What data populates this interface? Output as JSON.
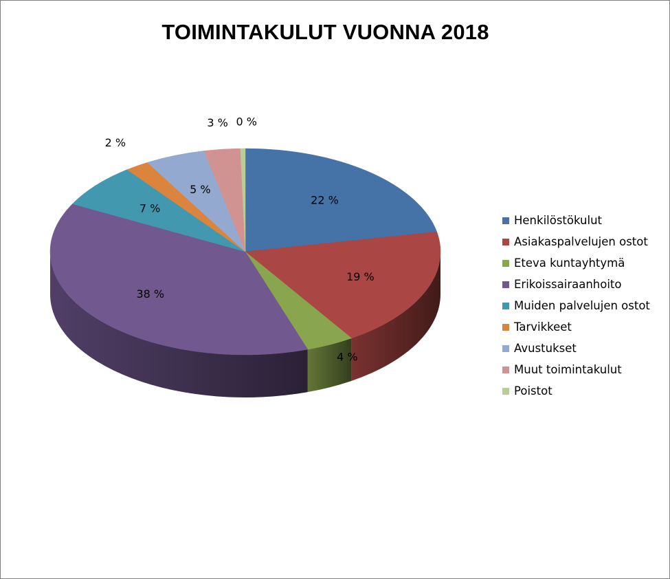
{
  "chart_data": {
    "type": "pie",
    "title": "TOIMINTAKULUT VUONNA 2018",
    "legend_position": "right",
    "style": "3d",
    "slices": [
      {
        "name": "Henkilöstökulut",
        "value": 22,
        "label": "22 %",
        "color": "#4572a7"
      },
      {
        "name": "Asiakaspalvelujen ostot",
        "value": 19,
        "label": "19 %",
        "color": "#aa4643"
      },
      {
        "name": "Eteva kuntayhtymä",
        "value": 4,
        "label": "4 %",
        "color": "#89a54e"
      },
      {
        "name": "Erikoissairaanhoito",
        "value": 38,
        "label": "38 %",
        "color": "#71588f"
      },
      {
        "name": "Muiden palvelujen ostot",
        "value": 7,
        "label": "7 %",
        "color": "#4198af"
      },
      {
        "name": "Tarvikkeet",
        "value": 2,
        "label": "2 %",
        "color": "#db843d"
      },
      {
        "name": "Avustukset",
        "value": 5,
        "label": "5 %",
        "color": "#93a9cf"
      },
      {
        "name": "Muut toimintakulut",
        "value": 3,
        "label": "3 %",
        "color": "#d19392"
      },
      {
        "name": "Poistot",
        "value": 0.4,
        "label": "0 %",
        "color": "#b9cd96"
      }
    ]
  }
}
